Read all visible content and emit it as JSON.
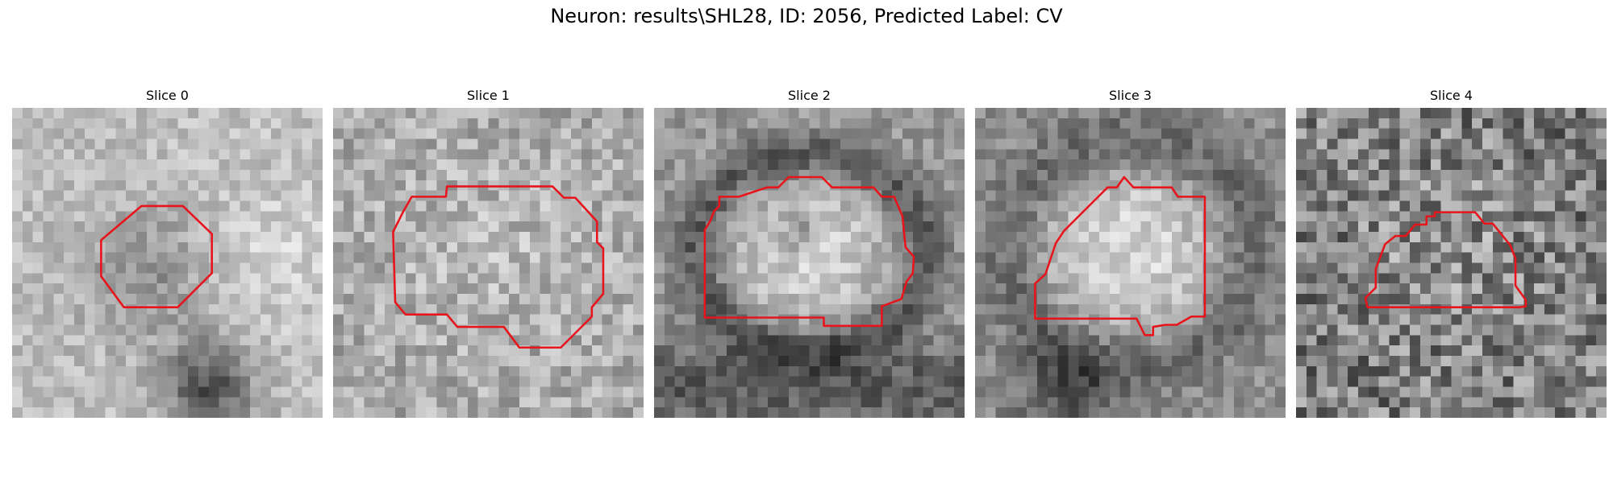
{
  "figure": {
    "title": "Neuron: results\\SHL28, ID: 2056, Predicted Label: CV"
  },
  "contour_color": "#e8141c",
  "panels": [
    {
      "title": "Slice 0"
    },
    {
      "title": "Slice 1"
    },
    {
      "title": "Slice 2"
    },
    {
      "title": "Slice 3"
    },
    {
      "title": "Slice 4"
    }
  ]
}
